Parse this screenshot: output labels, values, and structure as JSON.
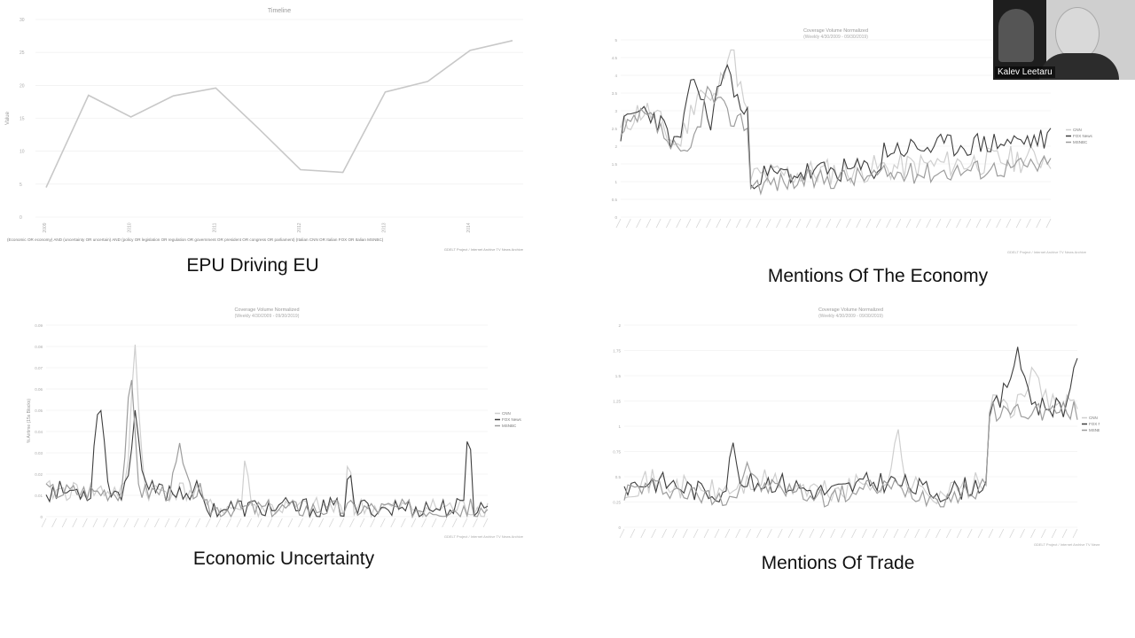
{
  "webcam": {
    "name": "Kalev Leetaru"
  },
  "panels": [
    {
      "caption": "EPU Driving EU"
    },
    {
      "caption": "Mentions Of The Economy"
    },
    {
      "caption": "Economic Uncertainty"
    },
    {
      "caption": "Mentions Of Trade"
    }
  ],
  "chart_data": [
    {
      "type": "line",
      "title": "Timeline",
      "ylabel": "Value",
      "x": [
        "2009",
        "2009.5",
        "2010",
        "2010.5",
        "2011",
        "2011.5",
        "2012",
        "2012.5",
        "2013",
        "2013.5",
        "2014",
        "2014.5"
      ],
      "ylim": [
        0,
        30
      ],
      "yticks": [
        "0",
        "5",
        "10",
        "15",
        "20",
        "25",
        "30"
      ],
      "xticks": [
        "2009",
        "2010",
        "2011",
        "2012",
        "2013",
        "2014"
      ],
      "series": [
        {
          "values": [
            4.5,
            18.5,
            15.2,
            18.4,
            19.6,
            13.5,
            7.2,
            6.8,
            19.0,
            20.6,
            25.3,
            26.8
          ],
          "color": "#cfcfcf"
        }
      ],
      "legend": "(Economic OR economy) AND (uncertainty OR uncertain) AND (policy OR legislation OR regulation OR government OR president OR congress OR parliament) (Italian CNN OR Italian FOX OR Italian MSNBC)",
      "footer": "GDELT Project / Internet Archive TV News Archive",
      "grid": true
    },
    {
      "type": "line",
      "title": "Coverage Volume Normalized",
      "subtitle": "(Weekly 4/30/2009 - 09/30/2019)",
      "ylabel": "% Airtime (15s Blocks)",
      "ylim": [
        0,
        5
      ],
      "yticks": [
        "0",
        "0.5",
        "1",
        "1.5",
        "2",
        "2.5",
        "3",
        "3.5",
        "4",
        "4.5",
        "5"
      ],
      "n_points": 130,
      "series": [
        {
          "name": "CNN",
          "color": "#cfcfcf"
        },
        {
          "name": "FOX News",
          "color": "#3e3e3e"
        },
        {
          "name": "MSNBC",
          "color": "#9d9d9d"
        }
      ],
      "footer": "GDELT Project / Internet Archive TV News Archive",
      "grid": true
    },
    {
      "type": "line",
      "title": "Coverage Volume Normalized",
      "subtitle": "(Weekly 4/30/2009 - 09/30/2019)",
      "ylabel": "% Airtime (15s Blocks)",
      "ylim": [
        0,
        0.09
      ],
      "yticks": [
        "0",
        "0.01",
        "0.02",
        "0.03",
        "0.04",
        "0.05",
        "0.06",
        "0.07",
        "0.08",
        "0.09"
      ],
      "n_points": 130,
      "series": [
        {
          "name": "CNN",
          "color": "#cfcfcf"
        },
        {
          "name": "FOX News",
          "color": "#3e3e3e"
        },
        {
          "name": "MSNBC",
          "color": "#9d9d9d"
        }
      ],
      "footer": "GDELT Project / Internet Archive TV News Archive",
      "grid": true
    },
    {
      "type": "line",
      "title": "Coverage Volume Normalized",
      "subtitle": "(Weekly 4/30/2009 - 09/30/2019)",
      "ylabel": "% Airtime (15s Blocks)",
      "ylim": [
        0,
        2
      ],
      "yticks": [
        "0",
        "0.25",
        "0.5",
        "0.75",
        "1",
        "1.25",
        "1.5",
        "1.75",
        "2"
      ],
      "n_points": 130,
      "series": [
        {
          "name": "CNN",
          "color": "#cfcfcf"
        },
        {
          "name": "FOX News",
          "color": "#3e3e3e"
        },
        {
          "name": "MSNBC",
          "color": "#9d9d9d"
        }
      ],
      "footer": "GDELT Project / Internet Archive TV News Archive",
      "grid": true
    }
  ]
}
